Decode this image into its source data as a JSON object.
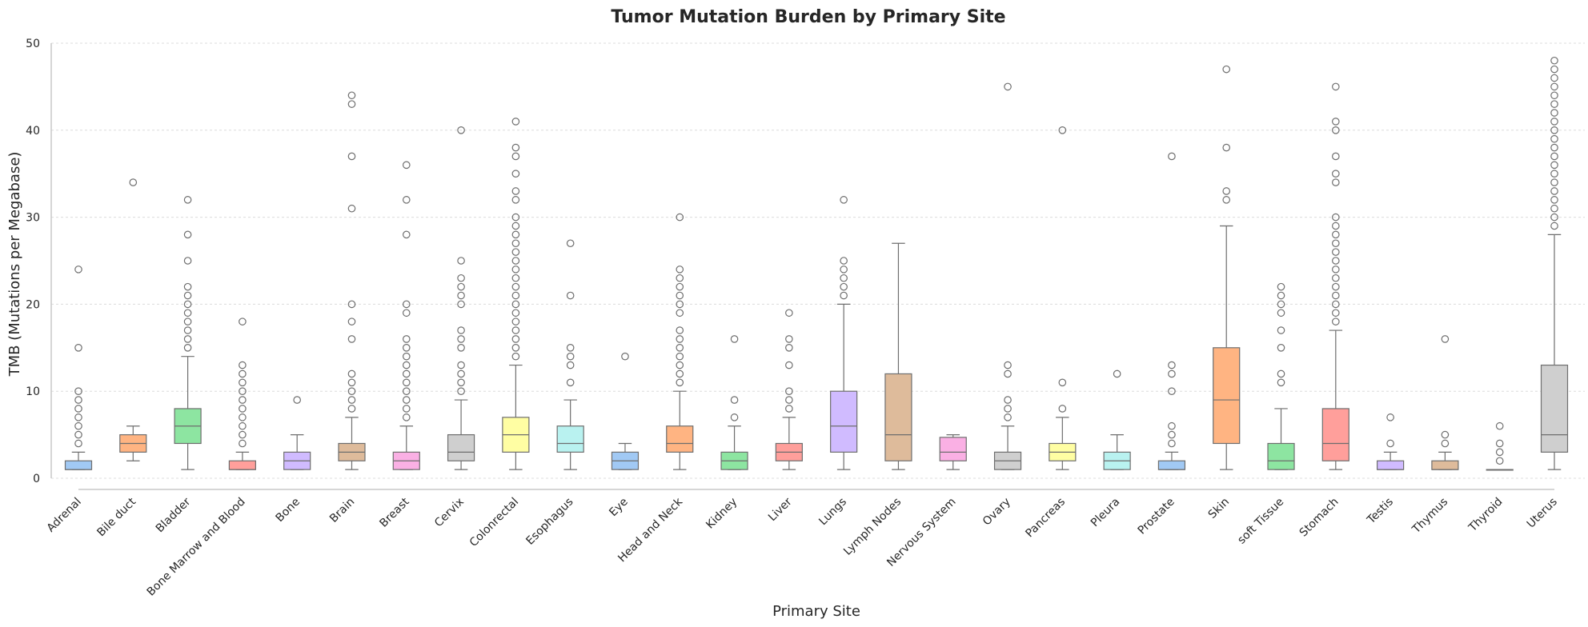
{
  "chart_data": {
    "type": "box",
    "title": "Tumor Mutation Burden by Primary Site",
    "xlabel": "Primary Site",
    "ylabel": "TMB (Mutations per Megabase)",
    "ylim": [
      0,
      50
    ],
    "yticks": [
      0,
      10,
      20,
      30,
      40,
      50
    ],
    "grid": "horizontal",
    "palette": [
      "#a1c9f4",
      "#ffb482",
      "#8de5a1",
      "#ff9f9b",
      "#d0bbff",
      "#debb9b",
      "#fab0e4",
      "#cfcfcf",
      "#fffea3",
      "#b9f2f0"
    ],
    "categories": [
      "Adrenal",
      "Bile duct",
      "Bladder",
      "Bone Marrow and Blood",
      "Bone",
      "Brain",
      "Breast",
      "Cervix",
      "Colonrectal",
      "Esophagus",
      "Eye",
      "Head and Neck",
      "Kidney",
      "Liver",
      "Lungs",
      "Lymph Nodes",
      "Nervous System",
      "Ovary",
      "Pancreas",
      "Pleura",
      "Prostate",
      "Skin",
      "soft Tissue",
      "Stomach",
      "Testis",
      "Thymus",
      "Thyroid",
      "Uterus"
    ],
    "boxes": [
      {
        "min": 1,
        "q1": 1,
        "median": 1,
        "q3": 2,
        "max": 3,
        "outliers": [
          4,
          5,
          6,
          7,
          8,
          9,
          10,
          15,
          24
        ]
      },
      {
        "min": 2,
        "q1": 3,
        "median": 4,
        "q3": 5,
        "max": 6,
        "outliers": [
          34
        ]
      },
      {
        "min": 1,
        "q1": 4,
        "median": 6,
        "q3": 8,
        "max": 14,
        "outliers": [
          15,
          16,
          17,
          18,
          19,
          20,
          21,
          22,
          25,
          28,
          32
        ]
      },
      {
        "min": 1,
        "q1": 1,
        "median": 1,
        "q3": 2,
        "max": 3,
        "outliers": [
          4,
          5,
          6,
          7,
          8,
          9,
          10,
          11,
          12,
          13,
          18
        ]
      },
      {
        "min": 1,
        "q1": 1,
        "median": 2,
        "q3": 3,
        "max": 5,
        "outliers": [
          9
        ]
      },
      {
        "min": 1,
        "q1": 2,
        "median": 3,
        "q3": 4,
        "max": 7,
        "outliers": [
          8,
          9,
          10,
          11,
          12,
          16,
          18,
          20,
          31,
          37,
          43,
          44
        ]
      },
      {
        "min": 1,
        "q1": 1,
        "median": 2,
        "q3": 3,
        "max": 6,
        "outliers": [
          7,
          8,
          9,
          10,
          11,
          12,
          13,
          14,
          15,
          16,
          19,
          20,
          28,
          32,
          36
        ]
      },
      {
        "min": 1,
        "q1": 2,
        "median": 3,
        "q3": 5,
        "max": 9,
        "outliers": [
          10,
          11,
          12,
          13,
          15,
          16,
          17,
          20,
          21,
          22,
          23,
          25,
          40
        ]
      },
      {
        "min": 1,
        "q1": 3,
        "median": 5,
        "q3": 7,
        "max": 13,
        "outliers": [
          14,
          15,
          16,
          17,
          18,
          19,
          20,
          21,
          22,
          23,
          24,
          25,
          26,
          27,
          28,
          29,
          30,
          32,
          33,
          35,
          37,
          38,
          41
        ]
      },
      {
        "min": 1,
        "q1": 3,
        "median": 4,
        "q3": 6,
        "max": 9,
        "outliers": [
          11,
          13,
          14,
          15,
          21,
          27
        ]
      },
      {
        "min": 1,
        "q1": 1,
        "median": 2,
        "q3": 3,
        "max": 4,
        "outliers": [
          14
        ]
      },
      {
        "min": 1,
        "q1": 3,
        "median": 4,
        "q3": 6,
        "max": 10,
        "outliers": [
          11,
          12,
          13,
          14,
          15,
          16,
          17,
          19,
          20,
          21,
          22,
          23,
          24,
          30
        ]
      },
      {
        "min": 1,
        "q1": 1,
        "median": 2,
        "q3": 3,
        "max": 6,
        "outliers": [
          7,
          9,
          16
        ]
      },
      {
        "min": 1,
        "q1": 2,
        "median": 3,
        "q3": 4,
        "max": 7,
        "outliers": [
          8,
          9,
          10,
          13,
          15,
          16,
          19
        ]
      },
      {
        "min": 1,
        "q1": 3,
        "median": 6,
        "q3": 10,
        "max": 20,
        "outliers": [
          21,
          22,
          23,
          24,
          25,
          32
        ]
      },
      {
        "min": 1,
        "q1": 2,
        "median": 5,
        "q3": 12,
        "max": 27,
        "outliers": []
      },
      {
        "min": 1,
        "q1": 2,
        "median": 3,
        "q3": 4.7,
        "max": 5,
        "outliers": []
      },
      {
        "min": 1,
        "q1": 1,
        "median": 2,
        "q3": 3,
        "max": 6,
        "outliers": [
          7,
          8,
          9,
          12,
          13,
          45
        ]
      },
      {
        "min": 1,
        "q1": 2,
        "median": 3,
        "q3": 4,
        "max": 7,
        "outliers": [
          8,
          11,
          40
        ]
      },
      {
        "min": 1,
        "q1": 1,
        "median": 2,
        "q3": 3,
        "max": 5,
        "outliers": [
          12
        ]
      },
      {
        "min": 1,
        "q1": 1,
        "median": 1,
        "q3": 2,
        "max": 3,
        "outliers": [
          4,
          5,
          6,
          10,
          12,
          13,
          37
        ]
      },
      {
        "min": 1,
        "q1": 4,
        "median": 9,
        "q3": 15,
        "max": 29,
        "outliers": [
          32,
          33,
          38,
          47
        ]
      },
      {
        "min": 1,
        "q1": 1,
        "median": 2,
        "q3": 4,
        "max": 8,
        "outliers": [
          11,
          12,
          15,
          17,
          19,
          20,
          21,
          22
        ]
      },
      {
        "min": 1,
        "q1": 2,
        "median": 4,
        "q3": 8,
        "max": 17,
        "outliers": [
          18,
          19,
          20,
          21,
          22,
          23,
          24,
          25,
          26,
          27,
          28,
          29,
          30,
          34,
          35,
          37,
          40,
          41,
          45
        ]
      },
      {
        "min": 1,
        "q1": 1,
        "median": 1,
        "q3": 2,
        "max": 3,
        "outliers": [
          4,
          7
        ]
      },
      {
        "min": 1,
        "q1": 1,
        "median": 1,
        "q3": 2,
        "max": 3,
        "outliers": [
          4,
          5,
          16
        ]
      },
      {
        "min": 1,
        "q1": 1,
        "median": 1,
        "q3": 1,
        "max": 1,
        "outliers": [
          2,
          3,
          4,
          6
        ]
      },
      {
        "min": 1,
        "q1": 3,
        "median": 5,
        "q3": 13,
        "max": 28,
        "outliers": [
          29,
          30,
          31,
          32,
          33,
          34,
          35,
          36,
          37,
          38,
          39,
          40,
          41,
          42,
          43,
          44,
          45,
          46,
          47,
          48
        ]
      }
    ]
  }
}
